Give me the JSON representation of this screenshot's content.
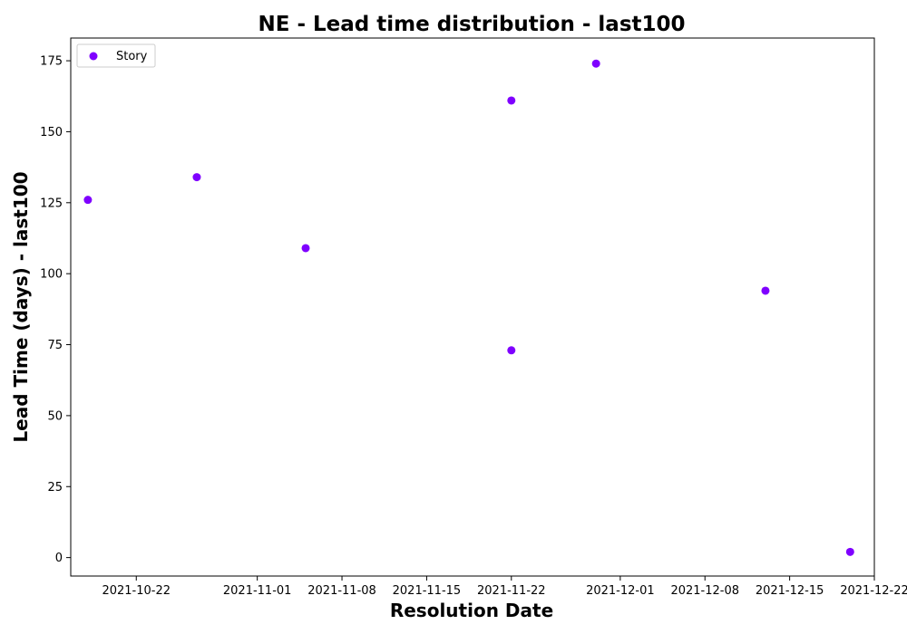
{
  "chart_data": {
    "type": "scatter",
    "title": "NE - Lead time distribution - last100",
    "xlabel": "Resolution Date",
    "ylabel": "Lead Time (days) - last100",
    "x_tick_labels": [
      "2021-10-22",
      "2021-11-01",
      "2021-11-08",
      "2021-11-15",
      "2021-11-22",
      "2021-12-01",
      "2021-12-08",
      "2021-12-15",
      "2021-12-22"
    ],
    "y_ticks": [
      0,
      25,
      50,
      75,
      100,
      125,
      150,
      175
    ],
    "xlim": [
      "2021-10-16T14:00",
      "2021-12-22T00:00"
    ],
    "ylim": [
      -6.5,
      183
    ],
    "grid": false,
    "legend_position": "top-left",
    "series": [
      {
        "name": "Story",
        "color": "#7f00ff",
        "points": [
          {
            "x": "2021-10-18",
            "y": 126
          },
          {
            "x": "2021-10-27",
            "y": 134
          },
          {
            "x": "2021-11-05",
            "y": 109
          },
          {
            "x": "2021-11-22",
            "y": 161
          },
          {
            "x": "2021-11-22",
            "y": 73
          },
          {
            "x": "2021-11-29",
            "y": 174
          },
          {
            "x": "2021-12-13",
            "y": 94
          },
          {
            "x": "2021-12-20",
            "y": 2
          }
        ]
      }
    ]
  }
}
